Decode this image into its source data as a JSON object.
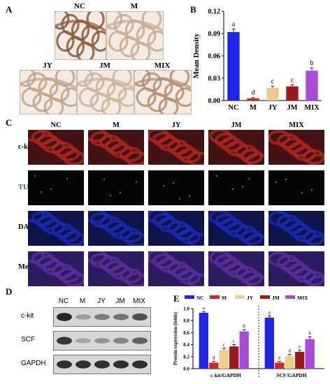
{
  "panels": {
    "a": "A",
    "b": "B",
    "c": "C",
    "d": "D",
    "e": "E"
  },
  "ihc": {
    "labels": [
      "NC",
      "M",
      "JY",
      "JM",
      "MIX"
    ],
    "stain_colors": [
      "#8a5a3c",
      "#c9ab90",
      "#c2a488",
      "#cdb49c",
      "#b48e70"
    ]
  },
  "chart_data": [
    {
      "type": "bar",
      "ylabel": "Mean Density",
      "categories": [
        "NC",
        "M",
        "JY",
        "JM",
        "MIX"
      ],
      "values": [
        0.092,
        0.003,
        0.017,
        0.019,
        0.04
      ],
      "errors": [
        0.004,
        0.001,
        0.002,
        0.002,
        0.004
      ],
      "letters": [
        "a",
        "d",
        "c",
        "c",
        "b"
      ],
      "colors": [
        "#1f24e6",
        "#cc2a1f",
        "#efcc8a",
        "#9b1a1a",
        "#a54ad9"
      ],
      "ylim": [
        0,
        0.12
      ],
      "yticks": [
        "0.00",
        "0.03",
        "0.06",
        "0.09",
        "0.12"
      ]
    },
    {
      "type": "bar",
      "ylabel": "Protein expression (folds)",
      "groups": [
        "c-kit/GAPDH",
        "SCF/GAPDH"
      ],
      "series": [
        {
          "name": "NC",
          "values": [
            0.93,
            0.85
          ],
          "errors": [
            0.02,
            0.03
          ],
          "letters": [
            "a",
            "a"
          ]
        },
        {
          "name": "M",
          "values": [
            0.1,
            0.1
          ],
          "errors": [
            0.02,
            0.02
          ],
          "letters": [
            "d",
            "e"
          ]
        },
        {
          "name": "JY",
          "values": [
            0.31,
            0.21
          ],
          "errors": [
            0.03,
            0.03
          ],
          "letters": [
            "c",
            "d"
          ]
        },
        {
          "name": "JM",
          "values": [
            0.37,
            0.28
          ],
          "errors": [
            0.03,
            0.03
          ],
          "letters": [
            "c",
            "c"
          ]
        },
        {
          "name": "MIX",
          "values": [
            0.62,
            0.49
          ],
          "errors": [
            0.03,
            0.04
          ],
          "letters": [
            "b",
            "b"
          ]
        }
      ],
      "colors": [
        "#1f24e6",
        "#cc2a1f",
        "#efcc8a",
        "#9b1a1a",
        "#a54ad9"
      ],
      "ylim": [
        0,
        1.0
      ],
      "yticks": [
        "0.0",
        "0.2",
        "0.4",
        "0.6",
        "0.8",
        "1.0"
      ],
      "legend": "top"
    }
  ],
  "fluor": {
    "columns": [
      "NC",
      "M",
      "JY",
      "JM",
      "MIX"
    ],
    "rows": [
      "c-kit",
      "TUNEL",
      "DAPI",
      "Merge"
    ],
    "row_colors": [
      "#b3261e",
      "#0a0a0a",
      "#1b2ab8",
      "#6f2e8f"
    ]
  },
  "western": {
    "lanes": [
      "NC",
      "M",
      "JY",
      "JM",
      "MIX"
    ],
    "rows": [
      "c-kit",
      "SCF",
      "GAPDH"
    ],
    "intensity": [
      [
        0.95,
        0.25,
        0.45,
        0.5,
        0.7
      ],
      [
        0.85,
        0.2,
        0.3,
        0.4,
        0.6
      ],
      [
        0.9,
        0.9,
        0.9,
        0.9,
        0.9
      ]
    ]
  }
}
